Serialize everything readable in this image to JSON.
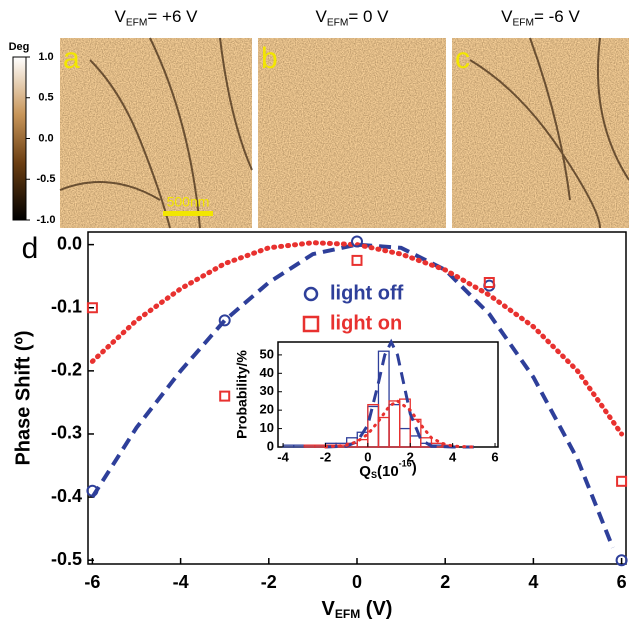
{
  "panels": [
    {
      "label": "a",
      "title": {
        "var": "V",
        "sub": "EFM",
        "rest": "= +6 V"
      }
    },
    {
      "label": "b",
      "title": {
        "var": "V",
        "sub": "EFM",
        "rest": "= 0 V"
      }
    },
    {
      "label": "c",
      "title": {
        "var": "V",
        "sub": "EFM",
        "rest": "= -6 V"
      }
    }
  ],
  "colorbar": {
    "title": "Deg",
    "lim": [
      -1,
      1
    ],
    "ticks": [
      {
        "value": 1,
        "label": "1.0"
      },
      0.5,
      {
        "value": 0,
        "label": "0.0"
      },
      -0.5,
      {
        "value": -1,
        "label": "-1.0"
      }
    ]
  },
  "scale_bar": "500nm",
  "chart_data": [
    {
      "type": "scatter",
      "panel_label": "d",
      "y_label": "Phase Shift (º)",
      "x_label": {
        "var": "V",
        "sub": "EFM",
        "rest": " (V)"
      },
      "xlim": [
        -6.1,
        6.1
      ],
      "ylim": [
        -0.506,
        0.02
      ],
      "xticks": [
        -6,
        -4,
        -2,
        0,
        2,
        4,
        6
      ],
      "yticks": [
        {
          "value": 0,
          "label": "0.0"
        },
        -0.1,
        -0.2,
        -0.3,
        -0.4,
        -0.5
      ],
      "series": [
        {
          "name": "light off",
          "color": "#2e3f9a",
          "marker": "circle",
          "x": [
            -6,
            -3,
            0,
            3,
            6
          ],
          "values": [
            -0.39,
            -0.12,
            0.005,
            -0.065,
            -0.5
          ]
        },
        {
          "name": "light on",
          "color": "#e8312f",
          "marker": "square",
          "x": [
            -6,
            -3,
            0,
            3,
            6
          ],
          "values": [
            -0.1,
            -0.24,
            -0.025,
            -0.06,
            -0.375
          ]
        }
      ],
      "fits": [
        {
          "color": "#2e3f9a",
          "style": "dashed",
          "x": [
            -6,
            -5,
            -4,
            -3,
            -2,
            -1,
            0,
            1,
            2,
            3,
            4,
            5,
            5.8
          ],
          "values": [
            -0.4,
            -0.29,
            -0.2,
            -0.12,
            -0.06,
            -0.015,
            0,
            -0.005,
            -0.04,
            -0.11,
            -0.21,
            -0.34,
            -0.48
          ]
        },
        {
          "color": "#e8312f",
          "style": "dotted",
          "x": [
            -6,
            -5,
            -4,
            -3,
            -2,
            -1,
            0,
            1,
            2,
            3,
            4,
            5,
            6
          ],
          "values": [
            -0.185,
            -0.12,
            -0.07,
            -0.03,
            -0.005,
            0.003,
            0,
            -0.015,
            -0.04,
            -0.08,
            -0.13,
            -0.2,
            -0.3
          ]
        }
      ]
    },
    {
      "type": "histogram",
      "y_label": "Probability/%",
      "x_label": {
        "var": "Q",
        "sub": "S",
        "rest": "(10",
        "sup": "-16",
        "end": ")"
      },
      "xlim": [
        -4.24,
        6.14
      ],
      "ylim": [
        0,
        57
      ],
      "xticks": [
        -4,
        -2,
        0,
        2,
        4,
        6
      ],
      "yticks": [
        0,
        10,
        20,
        30,
        40,
        50
      ],
      "bins": [
        -4,
        -3.5,
        -3,
        -2.5,
        -2,
        -1.5,
        -1,
        -0.5,
        0,
        0.5,
        1,
        1.5,
        2,
        2.5,
        3,
        3.5,
        4,
        4.5,
        5
      ],
      "series": [
        {
          "color": "#2e3f9a",
          "values": [
            1,
            1,
            1,
            1,
            2,
            2,
            5,
            8,
            22,
            52,
            23,
            10,
            6,
            2,
            1,
            1,
            0,
            0
          ]
        },
        {
          "color": "#e8312f",
          "values": [
            0,
            0,
            1,
            1,
            1,
            1,
            2,
            4,
            23,
            16,
            25,
            26,
            15,
            5,
            2,
            1,
            0,
            0
          ]
        }
      ],
      "fits": [
        {
          "color": "#2e3f9a",
          "style": "dashed",
          "x": [
            -2,
            -1,
            -0.5,
            0,
            0.5,
            0.8,
            1.1,
            1.4,
            1.7,
            2,
            2.5,
            3,
            4,
            5
          ],
          "values": [
            0,
            0.5,
            3,
            12,
            35,
            50,
            57,
            50,
            34,
            18,
            4,
            0.5,
            0,
            0
          ]
        },
        {
          "color": "#e8312f",
          "style": "dotted",
          "x": [
            -2,
            -1,
            -0.5,
            0,
            0.5,
            1,
            1.4,
            2,
            2.5,
            3,
            3.5,
            4,
            5
          ],
          "values": [
            0,
            1,
            3,
            7,
            14,
            22,
            25,
            20,
            12,
            5,
            2,
            0.5,
            0
          ]
        }
      ]
    }
  ]
}
